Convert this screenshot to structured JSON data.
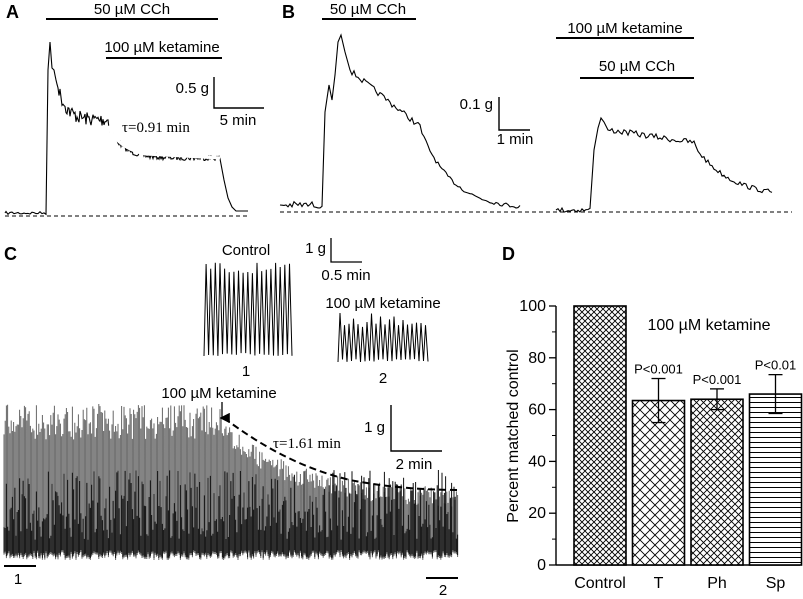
{
  "panels": {
    "a": {
      "letter": "A",
      "drug_bar": "50 µM CCh",
      "ket_bar": "100 µM ketamine",
      "scale_y": "0.5 g",
      "scale_x": "5 min",
      "tau": "τ=0.91 min"
    },
    "b": {
      "letter": "B",
      "drug_bar_left": "50 µM CCh",
      "scale_y": "0.1 g",
      "scale_x": "1 min",
      "ket_bar_right": "100 µM ketamine",
      "drug_bar_right": "50 µM CCh"
    },
    "c": {
      "letter": "C",
      "control_label": "Control",
      "control_index": "1",
      "ket_label_inset": "100 µM ketamine",
      "ket_index": "2",
      "inset_scale_y": "1 g",
      "inset_scale_x": "0.5 min",
      "arrow_label": "100 µM ketamine",
      "tau": "τ=1.61 min",
      "scale_y": "1 g",
      "scale_x": "2 min",
      "seg_left": "1",
      "seg_right": "2"
    },
    "d": {
      "letter": "D"
    }
  },
  "chart_data": [
    {
      "type": "bar",
      "title": "100 µM ketamine",
      "ylabel": "Percent matched control",
      "xlabel": "",
      "ylim": [
        0,
        100
      ],
      "yticks": [
        0,
        20,
        40,
        60,
        80,
        100
      ],
      "categories": [
        "Control",
        "T",
        "Ph",
        "Sp"
      ],
      "values": [
        100,
        63.5,
        64,
        66
      ],
      "errors": [
        0,
        8.5,
        4,
        7.5
      ],
      "annotations": [
        "",
        "P<0.001",
        "P<0.001",
        "P<0.01"
      ]
    }
  ]
}
